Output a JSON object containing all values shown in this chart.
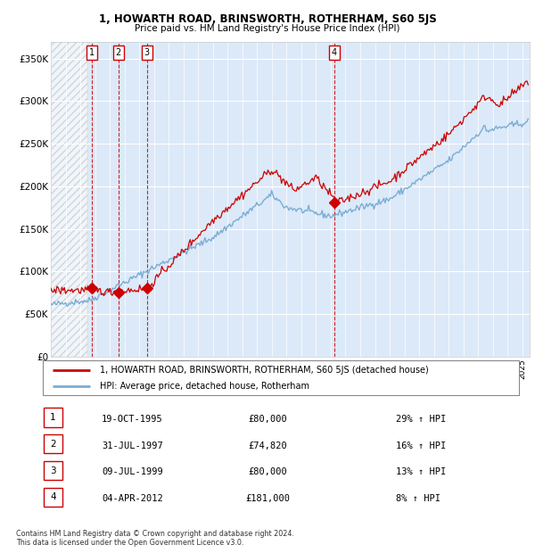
{
  "title": "1, HOWARTH ROAD, BRINSWORTH, ROTHERHAM, S60 5JS",
  "subtitle": "Price paid vs. HM Land Registry's House Price Index (HPI)",
  "legend_line1": "1, HOWARTH ROAD, BRINSWORTH, ROTHERHAM, S60 5JS (detached house)",
  "legend_line2": "HPI: Average price, detached house, Rotherham",
  "footer1": "Contains HM Land Registry data © Crown copyright and database right 2024.",
  "footer2": "This data is licensed under the Open Government Licence v3.0.",
  "transactions": [
    {
      "num": 1,
      "date": "19-OCT-1995",
      "price": 80000,
      "price_str": "£80,000",
      "hpi_change": "29% ↑ HPI",
      "year": 1995.8
    },
    {
      "num": 2,
      "date": "31-JUL-1997",
      "price": 74820,
      "price_str": "£74,820",
      "hpi_change": "16% ↑ HPI",
      "year": 1997.58
    },
    {
      "num": 3,
      "date": "09-JUL-1999",
      "price": 80000,
      "price_str": "£80,000",
      "hpi_change": "13% ↑ HPI",
      "year": 1999.52
    },
    {
      "num": 4,
      "date": "04-APR-2012",
      "price": 181000,
      "price_str": "£181,000",
      "hpi_change": "8% ↑ HPI",
      "year": 2012.25
    }
  ],
  "ylim": [
    0,
    370000
  ],
  "yticks": [
    0,
    50000,
    100000,
    150000,
    200000,
    250000,
    300000,
    350000
  ],
  "ytick_labels": [
    "£0",
    "£50K",
    "£100K",
    "£150K",
    "£200K",
    "£250K",
    "£300K",
    "£350K"
  ],
  "xlim_start": 1993.0,
  "xlim_end": 2025.5,
  "plot_bg_color": "#dce9f8",
  "hatched_region_end": 1995.5,
  "red_line_color": "#cc0000",
  "blue_line_color": "#7aadd4",
  "grid_color": "#ffffff",
  "transaction_line_color": "#cc0000",
  "transaction_dot_color": "#cc0000"
}
